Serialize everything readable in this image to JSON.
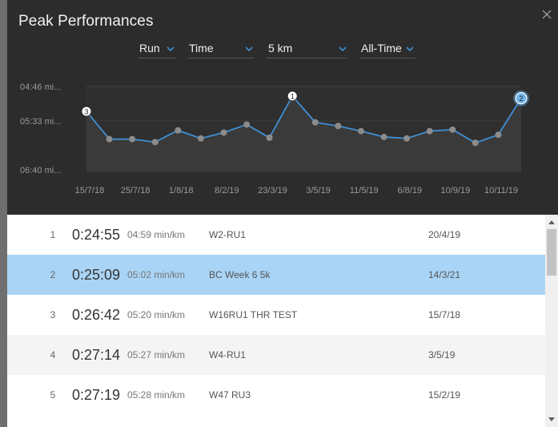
{
  "dialog": {
    "title": "Peak Performances"
  },
  "filters": {
    "sport": "Run",
    "metric": "Time",
    "distance": "5 km",
    "period": "All-Time"
  },
  "chart_data": {
    "type": "line",
    "y_ticks": [
      "04:46 mi...",
      "05:33 mi...",
      "06:40 mi..."
    ],
    "y_tick_values_sec_per_km": [
      286,
      333,
      400
    ],
    "x_tick_labels": [
      "15/7/18",
      "25/7/18",
      "1/8/18",
      "8/2/19",
      "23/3/19",
      "3/5/19",
      "11/5/19",
      "6/8/19",
      "10/9/19",
      "10/11/19"
    ],
    "series": [
      {
        "values_pace_sec_per_km": [
          320,
          358,
          358,
          362,
          346,
          357,
          349,
          338,
          356,
          299,
          335,
          340,
          347,
          355,
          357,
          347,
          345,
          363,
          352,
          302
        ],
        "rank_labels": {
          "0": "3",
          "9": "1",
          "19": "2"
        }
      }
    ],
    "y_axis_inverted": true,
    "grid": true,
    "colors": {
      "line": "#3f8fd4",
      "point": "#8c8c8c",
      "area": "#3a3a3a",
      "rank2_fill": "#6fb2e6"
    }
  },
  "results": [
    {
      "rank": "1",
      "time": "0:24:55",
      "pace": "04:59 min/km",
      "name": "W2-RU1",
      "date": "20/4/19"
    },
    {
      "rank": "2",
      "time": "0:25:09",
      "pace": "05:02 min/km",
      "name": "BC Week 6 5k",
      "date": "14/3/21"
    },
    {
      "rank": "3",
      "time": "0:26:42",
      "pace": "05:20 min/km",
      "name": "W16RU1 THR TEST",
      "date": "15/7/18"
    },
    {
      "rank": "4",
      "time": "0:27:14",
      "pace": "05:27 min/km",
      "name": "W4-RU1",
      "date": "3/5/19"
    },
    {
      "rank": "5",
      "time": "0:27:19",
      "pace": "05:28 min/km",
      "name": "W47 RU3",
      "date": "15/2/19"
    }
  ],
  "selected_rank": "2",
  "icons": {
    "close": "close-icon",
    "dropdown": "chevron-down-icon",
    "scroll_up": "scroll-up-arrow-icon",
    "scroll_down": "scroll-down-arrow-icon"
  },
  "colors": {
    "modal_bg": "#2c2c2c",
    "accent": "#3f8fd4",
    "selected_row": "#a9d4f5"
  }
}
